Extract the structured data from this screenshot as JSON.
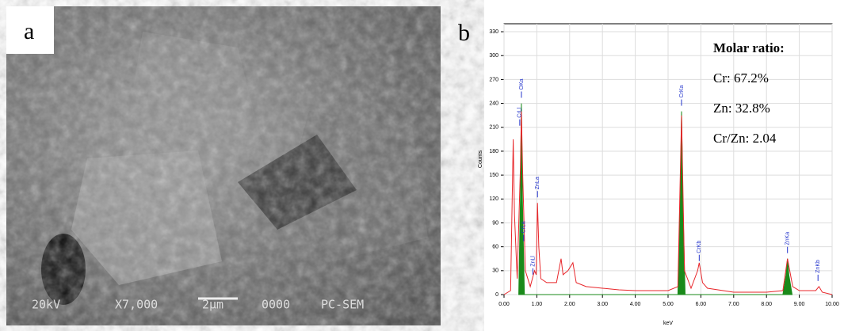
{
  "figure": {
    "panel_a": {
      "label": "a",
      "sem_info": [
        "20kV",
        "X7,000",
        "2µm",
        "0000",
        "PC-SEM"
      ]
    },
    "panel_b": {
      "label": "b"
    }
  },
  "chart_data": {
    "type": "line",
    "x_label": "keV",
    "y_label": "Counts",
    "xlim": [
      0,
      10
    ],
    "ylim": [
      0,
      340
    ],
    "xticks": [
      {
        "value": 0,
        "label": "0.00"
      },
      {
        "value": 1,
        "label": "1.00"
      },
      {
        "value": 2,
        "label": "2.00"
      },
      {
        "value": 3,
        "label": "3.00"
      },
      {
        "value": 4,
        "label": "4.00"
      },
      {
        "value": 5,
        "label": "5.00"
      },
      {
        "value": 6,
        "label": "6.00"
      },
      {
        "value": 7,
        "label": "7.00"
      },
      {
        "value": 8,
        "label": "8.00"
      },
      {
        "value": 9,
        "label": "9.00"
      },
      {
        "value": 10,
        "label": "10.00"
      }
    ],
    "yticks": [
      0,
      30,
      60,
      90,
      120,
      150,
      180,
      210,
      240,
      270,
      300,
      330
    ],
    "grid": true,
    "series": [
      {
        "color": "#e8262a",
        "fill": false,
        "x": [
          0,
          0.2,
          0.28,
          0.32,
          0.4,
          0.5,
          0.53,
          0.57,
          0.65,
          0.8,
          0.93,
          0.98,
          1.02,
          1.06,
          1.12,
          1.3,
          1.6,
          1.74,
          1.8,
          1.95,
          2.1,
          2.2,
          2.5,
          3,
          3.5,
          4,
          4.5,
          5,
          5.3,
          5.41,
          5.5,
          5.7,
          5.9,
          5.95,
          6.05,
          6.2,
          7,
          8,
          8.5,
          8.64,
          8.8,
          9,
          9.5,
          9.6,
          9.7,
          10
        ],
        "values": [
          0,
          5,
          195,
          100,
          20,
          160,
          230,
          150,
          30,
          10,
          30,
          25,
          115,
          60,
          20,
          15,
          15,
          45,
          25,
          30,
          40,
          15,
          10,
          8,
          6,
          5,
          5,
          5,
          10,
          225,
          30,
          8,
          30,
          40,
          15,
          8,
          3,
          3,
          5,
          45,
          10,
          5,
          5,
          10,
          3,
          0
        ]
      },
      {
        "color": "#1a8a1a",
        "fill": true,
        "x": [
          0.45,
          0.5,
          0.53,
          0.56,
          0.62,
          5.3,
          5.38,
          5.41,
          5.45,
          5.52,
          8.5,
          8.6,
          8.64,
          8.68,
          8.78
        ],
        "values": [
          0,
          120,
          240,
          120,
          0,
          0,
          130,
          230,
          120,
          0,
          0,
          25,
          45,
          25,
          0
        ]
      }
    ],
    "peak_labels": [
      {
        "label": "OKa",
        "x": 0.53,
        "y": 255,
        "color": "#2233cc"
      },
      {
        "label": "CrLl",
        "x": 0.48,
        "y": 220,
        "color": "#2233cc"
      },
      {
        "label": "CrLa",
        "x": 0.6,
        "y": 75,
        "color": "#2233cc"
      },
      {
        "label": "ZnLl",
        "x": 0.88,
        "y": 33,
        "color": "#2233cc"
      },
      {
        "label": "ZnLa",
        "x": 1.02,
        "y": 130,
        "color": "#2233cc"
      },
      {
        "label": "CrKa",
        "x": 5.41,
        "y": 245,
        "color": "#2233cc"
      },
      {
        "label": "CrKb",
        "x": 5.95,
        "y": 50,
        "color": "#2233cc"
      },
      {
        "label": "ZnKa",
        "x": 8.64,
        "y": 60,
        "color": "#2233cc"
      },
      {
        "label": "ZnKb",
        "x": 9.57,
        "y": 25,
        "color": "#2233cc"
      }
    ],
    "annotations": [
      "Molar ratio:",
      "Cr: 67.2%",
      "Zn: 32.8%",
      "Cr/Zn: 2.04"
    ]
  }
}
